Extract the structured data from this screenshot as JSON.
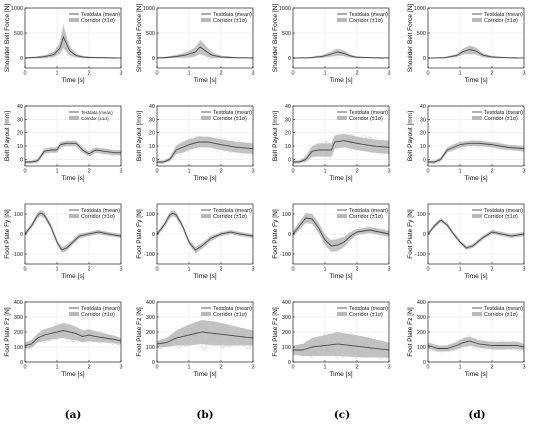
{
  "captions": [
    "(a)",
    "(b)",
    "(c)",
    "(d)"
  ],
  "legend": {
    "mean_label": "Testdata (mean)",
    "band_label": "Corridor (±1σ)"
  },
  "colors": {
    "mean": "#4a4a4a",
    "band": "#b9b9b9",
    "traces": "#d6d6d6",
    "axis": "#000000",
    "grid": "#e2e2e2"
  },
  "chart_data": [
    {
      "type": "line",
      "row": 0,
      "column": "(a)",
      "xlabel": "Time [s]",
      "ylabel": "Shoulder Belt Force [N]",
      "xlim": [
        0,
        3
      ],
      "ylim": [
        -200,
        1000
      ],
      "xticks": [
        0,
        1,
        2,
        3
      ],
      "yticks": [
        0,
        500,
        1000
      ],
      "legend_position": "top-right",
      "grid": true,
      "mean": {
        "x": [
          0,
          0.3,
          0.6,
          0.9,
          1.1,
          1.2,
          1.3,
          1.4,
          1.6,
          1.8,
          2.0,
          2.5,
          3.0
        ],
        "y": [
          0,
          10,
          25,
          70,
          200,
          420,
          280,
          140,
          50,
          20,
          10,
          5,
          0
        ]
      },
      "band_sd": [
        10,
        15,
        25,
        50,
        110,
        220,
        160,
        90,
        40,
        20,
        15,
        10,
        10
      ],
      "trace_count": 7
    },
    {
      "type": "line",
      "row": 0,
      "column": "(b)",
      "xlabel": "Time [s]",
      "ylabel": "Shoulder Belt Force [N]",
      "xlim": [
        0,
        3
      ],
      "ylim": [
        -200,
        1000
      ],
      "xticks": [
        0,
        1,
        2,
        3
      ],
      "yticks": [
        0,
        500,
        1000
      ],
      "legend_position": "top-right",
      "grid": true,
      "mean": {
        "x": [
          0,
          0.3,
          0.6,
          0.9,
          1.2,
          1.35,
          1.5,
          1.7,
          2.0,
          2.5,
          3.0
        ],
        "y": [
          0,
          10,
          30,
          60,
          120,
          220,
          150,
          60,
          20,
          5,
          0
        ]
      },
      "band_sd": [
        10,
        15,
        30,
        50,
        90,
        140,
        110,
        60,
        25,
        10,
        10
      ],
      "trace_count": 7
    },
    {
      "type": "line",
      "row": 0,
      "column": "(c)",
      "xlabel": "Time [s]",
      "ylabel": "Shoulder Belt Force [N]",
      "xlim": [
        0,
        3
      ],
      "ylim": [
        -200,
        1000
      ],
      "xticks": [
        0,
        1,
        2,
        3
      ],
      "yticks": [
        0,
        500,
        1000
      ],
      "legend_position": "top-right",
      "grid": true,
      "mean": {
        "x": [
          0,
          0.5,
          0.9,
          1.2,
          1.4,
          1.6,
          1.8,
          2.0,
          2.5,
          3.0
        ],
        "y": [
          0,
          5,
          30,
          80,
          120,
          90,
          40,
          15,
          5,
          0
        ]
      },
      "band_sd": [
        10,
        10,
        25,
        50,
        70,
        55,
        30,
        15,
        10,
        10
      ],
      "trace_count": 7
    },
    {
      "type": "line",
      "row": 0,
      "column": "(d)",
      "xlabel": "Time [s]",
      "ylabel": "Shoulder Belt Force [N]",
      "xlim": [
        0,
        3
      ],
      "ylim": [
        -200,
        1000
      ],
      "xticks": [
        0,
        1,
        2,
        3
      ],
      "yticks": [
        0,
        500,
        1000
      ],
      "legend_position": "top-right",
      "grid": true,
      "mean": {
        "x": [
          0,
          0.5,
          0.9,
          1.1,
          1.3,
          1.5,
          1.7,
          2.0,
          2.5,
          3.0
        ],
        "y": [
          0,
          5,
          50,
          130,
          170,
          140,
          60,
          20,
          5,
          0
        ]
      },
      "band_sd": [
        10,
        10,
        30,
        60,
        80,
        70,
        40,
        20,
        10,
        10
      ],
      "trace_count": 7
    },
    {
      "type": "line",
      "row": 1,
      "column": "(a)",
      "xlabel": "Time [s]",
      "ylabel": "Belt Payout [mm]",
      "xlim": [
        0,
        3
      ],
      "ylim": [
        -5,
        40
      ],
      "xticks": [
        0,
        1,
        2,
        3
      ],
      "yticks": [
        0,
        10,
        20,
        30,
        40
      ],
      "legend_position": "top-right",
      "grid": true,
      "mean": {
        "x": [
          0,
          0.2,
          0.4,
          0.6,
          0.8,
          1.0,
          1.1,
          1.3,
          1.6,
          1.8,
          2.0,
          2.2,
          2.5,
          2.8,
          3.0
        ],
        "y": [
          -2,
          -2,
          -1,
          6,
          7,
          7,
          11,
          12,
          12,
          7,
          4,
          7,
          6,
          5,
          5
        ]
      },
      "band_sd": [
        1,
        1,
        1.5,
        2,
        2,
        2,
        2,
        2,
        2,
        2,
        2,
        2,
        2,
        2,
        2
      ],
      "trace_count": 7
    },
    {
      "type": "line",
      "row": 1,
      "column": "(b)",
      "xlabel": "Time [s]",
      "ylabel": "Belt Payout [mm]",
      "xlim": [
        0,
        3
      ],
      "ylim": [
        -5,
        40
      ],
      "xticks": [
        0,
        1,
        2,
        3
      ],
      "yticks": [
        0,
        10,
        20,
        30,
        40
      ],
      "legend_position": "top-right",
      "grid": true,
      "mean": {
        "x": [
          0,
          0.2,
          0.4,
          0.6,
          0.8,
          1.0,
          1.3,
          1.6,
          2.0,
          2.5,
          3.0
        ],
        "y": [
          -2,
          -2,
          0,
          7,
          9,
          11,
          13,
          13,
          11,
          9,
          8
        ]
      },
      "band_sd": [
        1,
        1,
        1.5,
        3,
        4,
        4,
        4,
        4,
        4,
        4,
        4
      ],
      "trace_count": 7
    },
    {
      "type": "line",
      "row": 1,
      "column": "(c)",
      "xlabel": "Time [s]",
      "ylabel": "Belt Payout [mm]",
      "xlim": [
        0,
        3
      ],
      "ylim": [
        -5,
        40
      ],
      "xticks": [
        0,
        1,
        2,
        3
      ],
      "yticks": [
        0,
        10,
        20,
        30,
        40
      ],
      "legend_position": "top-right",
      "grid": true,
      "mean": {
        "x": [
          0,
          0.2,
          0.4,
          0.6,
          0.8,
          1.0,
          1.2,
          1.3,
          1.6,
          2.0,
          2.5,
          3.0
        ],
        "y": [
          -2,
          -2,
          0,
          6,
          7,
          7,
          7,
          13,
          14,
          12,
          10,
          9
        ]
      },
      "band_sd": [
        1,
        1,
        2,
        4,
        5,
        5,
        5,
        5,
        5,
        5,
        5,
        5
      ],
      "trace_count": 7
    },
    {
      "type": "line",
      "row": 1,
      "column": "(d)",
      "xlabel": "Time [s]",
      "ylabel": "Belt Payout [mm]",
      "xlim": [
        0,
        3
      ],
      "ylim": [
        -5,
        40
      ],
      "xticks": [
        0,
        1,
        2,
        3
      ],
      "yticks": [
        0,
        10,
        20,
        30,
        40
      ],
      "legend_position": "top-right",
      "grid": true,
      "mean": {
        "x": [
          0,
          0.2,
          0.4,
          0.6,
          0.8,
          1.0,
          1.3,
          1.6,
          2.0,
          2.5,
          3.0
        ],
        "y": [
          -2,
          -2,
          0,
          7,
          9,
          11,
          12,
          12,
          11,
          9,
          8
        ]
      },
      "band_sd": [
        1,
        1,
        1.5,
        2,
        2,
        2,
        2,
        2,
        2,
        2,
        2
      ],
      "trace_count": 7
    },
    {
      "type": "line",
      "row": 2,
      "column": "(a)",
      "xlabel": "Time [s]",
      "ylabel": "Foot Plate Fy [N]",
      "xlim": [
        0,
        3
      ],
      "ylim": [
        -150,
        150
      ],
      "xticks": [
        0,
        1,
        2,
        3
      ],
      "yticks": [
        -100,
        0,
        100
      ],
      "legend_position": "top-right",
      "grid": true,
      "mean": {
        "x": [
          0,
          0.2,
          0.4,
          0.5,
          0.6,
          0.8,
          1.0,
          1.15,
          1.3,
          1.5,
          1.7,
          2.0,
          2.3,
          2.6,
          3.0
        ],
        "y": [
          0,
          40,
          95,
          105,
          95,
          40,
          -40,
          -80,
          -70,
          -40,
          -10,
          0,
          10,
          0,
          -10
        ]
      },
      "band_sd": [
        10,
        12,
        15,
        15,
        15,
        12,
        12,
        15,
        15,
        12,
        12,
        10,
        10,
        10,
        10
      ],
      "trace_count": 7
    },
    {
      "type": "line",
      "row": 2,
      "column": "(b)",
      "xlabel": "Time [s]",
      "ylabel": "Foot Plate Fy [N]",
      "xlim": [
        0,
        3
      ],
      "ylim": [
        -150,
        150
      ],
      "xticks": [
        0,
        1,
        2,
        3
      ],
      "yticks": [
        -100,
        0,
        100
      ],
      "legend_position": "top-right",
      "grid": true,
      "mean": {
        "x": [
          0,
          0.2,
          0.4,
          0.5,
          0.6,
          0.8,
          1.0,
          1.2,
          1.4,
          1.7,
          2.0,
          2.3,
          2.6,
          3.0
        ],
        "y": [
          0,
          40,
          95,
          105,
          95,
          40,
          -40,
          -80,
          -60,
          -20,
          0,
          10,
          0,
          -10
        ]
      },
      "band_sd": [
        10,
        12,
        15,
        15,
        15,
        12,
        12,
        15,
        15,
        12,
        10,
        10,
        10,
        10
      ],
      "trace_count": 7
    },
    {
      "type": "line",
      "row": 2,
      "column": "(c)",
      "xlabel": "Time [s]",
      "ylabel": "Foot Plate Fy [N]",
      "xlim": [
        0,
        3
      ],
      "ylim": [
        -150,
        150
      ],
      "xticks": [
        0,
        1,
        2,
        3
      ],
      "yticks": [
        -100,
        0,
        100
      ],
      "legend_position": "top-right",
      "grid": true,
      "mean": {
        "x": [
          0,
          0.2,
          0.4,
          0.6,
          0.8,
          1.0,
          1.2,
          1.4,
          1.6,
          1.8,
          2.0,
          2.4,
          3.0
        ],
        "y": [
          0,
          40,
          80,
          75,
          30,
          -30,
          -60,
          -55,
          -40,
          -10,
          10,
          20,
          0
        ]
      },
      "band_sd": [
        15,
        20,
        25,
        25,
        25,
        25,
        30,
        30,
        25,
        20,
        15,
        15,
        15
      ],
      "trace_count": 7
    },
    {
      "type": "line",
      "row": 2,
      "column": "(d)",
      "xlabel": "Time [s]",
      "ylabel": "Foot Plate Fy [N]",
      "xlim": [
        0,
        3
      ],
      "ylim": [
        -150,
        150
      ],
      "xticks": [
        0,
        1,
        2,
        3
      ],
      "yticks": [
        -100,
        0,
        100
      ],
      "legend_position": "top-right",
      "grid": true,
      "mean": {
        "x": [
          0,
          0.2,
          0.4,
          0.6,
          0.8,
          1.0,
          1.2,
          1.4,
          1.7,
          2.0,
          2.3,
          2.6,
          3.0
        ],
        "y": [
          0,
          40,
          70,
          45,
          0,
          -40,
          -70,
          -60,
          -20,
          10,
          0,
          -10,
          0
        ]
      },
      "band_sd": [
        8,
        10,
        10,
        10,
        10,
        10,
        10,
        10,
        10,
        10,
        10,
        10,
        10
      ],
      "trace_count": 7
    },
    {
      "type": "line",
      "row": 3,
      "column": "(a)",
      "xlabel": "Time [s]",
      "ylabel": "Foot Plate Fz [N]",
      "xlim": [
        0,
        3
      ],
      "ylim": [
        0,
        400
      ],
      "xticks": [
        0,
        1,
        2,
        3
      ],
      "yticks": [
        0,
        100,
        200,
        300,
        400
      ],
      "legend_position": "top-right",
      "grid": true,
      "mean": {
        "x": [
          0,
          0.2,
          0.4,
          0.6,
          0.8,
          1.0,
          1.2,
          1.4,
          1.6,
          1.8,
          2.0,
          2.2,
          2.5,
          2.8,
          3.0
        ],
        "y": [
          110,
          120,
          160,
          180,
          190,
          200,
          210,
          200,
          190,
          170,
          180,
          170,
          160,
          150,
          140
        ]
      },
      "band_sd": [
        20,
        25,
        30,
        40,
        40,
        45,
        50,
        50,
        45,
        40,
        40,
        35,
        30,
        25,
        20
      ],
      "trace_count": 7
    },
    {
      "type": "line",
      "row": 3,
      "column": "(b)",
      "xlabel": "Time [s]",
      "ylabel": "Foot Plate Fz [N]",
      "xlim": [
        0,
        3
      ],
      "ylim": [
        0,
        400
      ],
      "xticks": [
        0,
        1,
        2,
        3
      ],
      "yticks": [
        0,
        100,
        200,
        300,
        400
      ],
      "legend_position": "top-right",
      "grid": true,
      "mean": {
        "x": [
          0,
          0.3,
          0.6,
          1.0,
          1.4,
          1.8,
          2.2,
          2.6,
          3.0
        ],
        "y": [
          120,
          130,
          160,
          180,
          200,
          190,
          180,
          170,
          160
        ]
      },
      "band_sd": [
        20,
        30,
        50,
        70,
        80,
        80,
        70,
        60,
        50
      ],
      "trace_count": 7
    },
    {
      "type": "line",
      "row": 3,
      "column": "(c)",
      "xlabel": "Time [s]",
      "ylabel": "Foot Plate Fz [N]",
      "xlim": [
        0,
        3
      ],
      "ylim": [
        0,
        400
      ],
      "xticks": [
        0,
        1,
        2,
        3
      ],
      "yticks": [
        0,
        100,
        200,
        300,
        400
      ],
      "legend_position": "top-right",
      "grid": true,
      "mean": {
        "x": [
          0,
          0.3,
          0.6,
          1.0,
          1.4,
          1.8,
          2.2,
          2.6,
          3.0
        ],
        "y": [
          80,
          80,
          100,
          110,
          120,
          110,
          100,
          90,
          80
        ]
      },
      "band_sd": [
        30,
        40,
        60,
        70,
        80,
        75,
        70,
        60,
        50
      ],
      "trace_count": 7
    },
    {
      "type": "line",
      "row": 3,
      "column": "(d)",
      "xlabel": "Time [s]",
      "ylabel": "Foot Plate Fz [N]",
      "xlim": [
        0,
        3
      ],
      "ylim": [
        0,
        400
      ],
      "xticks": [
        0,
        1,
        2,
        3
      ],
      "yticks": [
        0,
        100,
        200,
        300,
        400
      ],
      "legend_position": "top-right",
      "grid": true,
      "mean": {
        "x": [
          0,
          0.3,
          0.6,
          0.9,
          1.1,
          1.3,
          1.6,
          2.0,
          2.4,
          2.8,
          3.0
        ],
        "y": [
          110,
          90,
          90,
          110,
          130,
          140,
          120,
          110,
          110,
          110,
          100
        ]
      },
      "band_sd": [
        20,
        20,
        20,
        25,
        30,
        30,
        25,
        25,
        25,
        25,
        20
      ],
      "trace_count": 7
    }
  ]
}
